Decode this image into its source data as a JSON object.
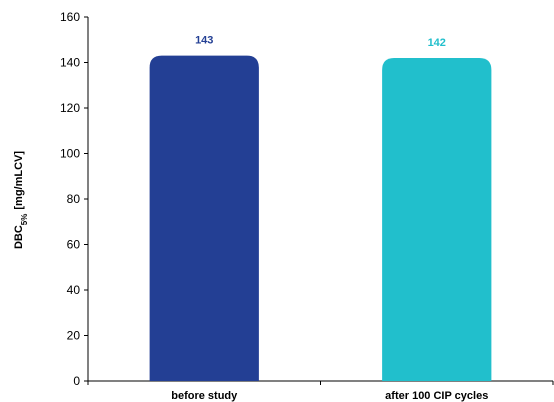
{
  "chart_data": {
    "type": "bar",
    "y_label": {
      "main": "DBC",
      "subscript": "5%",
      "unit": "[mg/mLCV]"
    },
    "categories": [
      "before study",
      "after 100 CIP cycles"
    ],
    "values": [
      143,
      142
    ],
    "colors": [
      "#233f94",
      "#21bfcc"
    ],
    "ylim": [
      0,
      160
    ],
    "yticks": [
      0,
      20,
      40,
      60,
      80,
      100,
      120,
      140,
      160
    ],
    "grid": false
  }
}
